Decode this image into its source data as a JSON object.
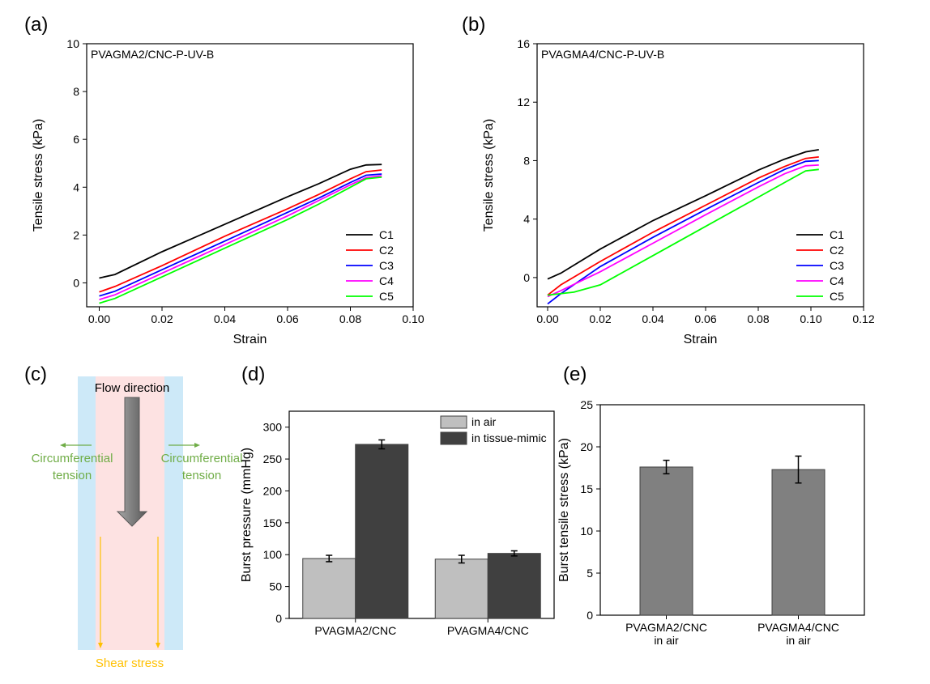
{
  "panel_labels": {
    "a": "(a)",
    "b": "(b)",
    "c": "(c)",
    "d": "(d)",
    "e": "(e)"
  },
  "diagram": {
    "flow_label": "Flow direction",
    "left_tension": [
      "Circumferential",
      "tension"
    ],
    "right_tension": [
      "Circumferential",
      "tension"
    ],
    "shear_label": "Shear stress",
    "colors": {
      "wall": "#cde9f8",
      "lumen": "#fde2e2",
      "tension": "#70ad47",
      "shear": "#ffc000",
      "arrow": "#808080"
    }
  },
  "chart_data": [
    {
      "type": "line",
      "annotation": "PVAGMA2/CNC-P-UV-B",
      "xlabel": "Strain",
      "ylabel": "Tensile stress (kPa)",
      "xlim": [
        -0.004,
        0.1
      ],
      "ylim": [
        -1,
        10
      ],
      "xticks": [
        "0.00",
        "0.02",
        "0.04",
        "0.06",
        "0.08",
        "0.10"
      ],
      "yticks": [
        "0",
        "2",
        "4",
        "6",
        "8",
        "10"
      ],
      "legend_position": "bottom-right",
      "series": [
        {
          "name": "C1",
          "color": "#000000",
          "points": [
            [
              0,
              0.2
            ],
            [
              0.005,
              0.35
            ],
            [
              0.02,
              1.3
            ],
            [
              0.04,
              2.45
            ],
            [
              0.06,
              3.6
            ],
            [
              0.07,
              4.15
            ],
            [
              0.08,
              4.75
            ],
            [
              0.085,
              4.93
            ],
            [
              0.09,
              4.95
            ]
          ]
        },
        {
          "name": "C2",
          "color": "#ff0000",
          "points": [
            [
              0,
              -0.38
            ],
            [
              0.005,
              -0.15
            ],
            [
              0.02,
              0.72
            ],
            [
              0.04,
              1.95
            ],
            [
              0.06,
              3.1
            ],
            [
              0.07,
              3.7
            ],
            [
              0.08,
              4.35
            ],
            [
              0.085,
              4.65
            ],
            [
              0.09,
              4.72
            ]
          ]
        },
        {
          "name": "C3",
          "color": "#0000ff",
          "points": [
            [
              0,
              -0.55
            ],
            [
              0.005,
              -0.35
            ],
            [
              0.02,
              0.55
            ],
            [
              0.04,
              1.75
            ],
            [
              0.06,
              2.95
            ],
            [
              0.07,
              3.55
            ],
            [
              0.08,
              4.2
            ],
            [
              0.085,
              4.5
            ],
            [
              0.09,
              4.55
            ]
          ]
        },
        {
          "name": "C4",
          "color": "#ff00ff",
          "points": [
            [
              0,
              -0.7
            ],
            [
              0.005,
              -0.5
            ],
            [
              0.02,
              0.4
            ],
            [
              0.04,
              1.6
            ],
            [
              0.06,
              2.8
            ],
            [
              0.07,
              3.45
            ],
            [
              0.08,
              4.1
            ],
            [
              0.085,
              4.4
            ],
            [
              0.09,
              4.48
            ]
          ]
        },
        {
          "name": "C5",
          "color": "#00ff00",
          "points": [
            [
              0,
              -0.85
            ],
            [
              0.005,
              -0.65
            ],
            [
              0.02,
              0.25
            ],
            [
              0.04,
              1.45
            ],
            [
              0.06,
              2.65
            ],
            [
              0.07,
              3.3
            ],
            [
              0.08,
              4.0
            ],
            [
              0.085,
              4.35
            ],
            [
              0.09,
              4.42
            ]
          ]
        }
      ]
    },
    {
      "type": "line",
      "annotation": "PVAGMA4/CNC-P-UV-B",
      "xlabel": "Strain",
      "ylabel": "Tensile stress (kPa)",
      "xlim": [
        -0.004,
        0.12
      ],
      "ylim": [
        -2,
        16
      ],
      "xticks": [
        "0.00",
        "0.02",
        "0.04",
        "0.06",
        "0.08",
        "0.10",
        "0.12"
      ],
      "yticks": [
        "0",
        "4",
        "8",
        "12",
        "16"
      ],
      "legend_position": "bottom-right",
      "series": [
        {
          "name": "C1",
          "color": "#000000",
          "points": [
            [
              0,
              -0.1
            ],
            [
              0.005,
              0.3
            ],
            [
              0.02,
              1.95
            ],
            [
              0.04,
              3.9
            ],
            [
              0.06,
              5.6
            ],
            [
              0.08,
              7.35
            ],
            [
              0.09,
              8.1
            ],
            [
              0.098,
              8.6
            ],
            [
              0.103,
              8.75
            ]
          ]
        },
        {
          "name": "C2",
          "color": "#ff0000",
          "points": [
            [
              0,
              -1.2
            ],
            [
              0.005,
              -0.5
            ],
            [
              0.02,
              1.1
            ],
            [
              0.04,
              3.1
            ],
            [
              0.06,
              4.95
            ],
            [
              0.08,
              6.8
            ],
            [
              0.09,
              7.6
            ],
            [
              0.098,
              8.15
            ],
            [
              0.103,
              8.25
            ]
          ]
        },
        {
          "name": "C3",
          "color": "#0000ff",
          "points": [
            [
              0,
              -1.8
            ],
            [
              0.005,
              -1.1
            ],
            [
              0.02,
              0.75
            ],
            [
              0.04,
              2.75
            ],
            [
              0.06,
              4.65
            ],
            [
              0.08,
              6.5
            ],
            [
              0.09,
              7.4
            ],
            [
              0.098,
              7.95
            ],
            [
              0.103,
              8.0
            ]
          ]
        },
        {
          "name": "C4",
          "color": "#ff00ff",
          "points": [
            [
              0,
              -1.3
            ],
            [
              0.005,
              -0.9
            ],
            [
              0.02,
              0.4
            ],
            [
              0.04,
              2.35
            ],
            [
              0.06,
              4.3
            ],
            [
              0.08,
              6.2
            ],
            [
              0.09,
              7.1
            ],
            [
              0.098,
              7.65
            ],
            [
              0.103,
              7.7
            ]
          ]
        },
        {
          "name": "C5",
          "color": "#00ff00",
          "points": [
            [
              0,
              -1.2
            ],
            [
              0.01,
              -1.0
            ],
            [
              0.02,
              -0.5
            ],
            [
              0.04,
              1.5
            ],
            [
              0.06,
              3.5
            ],
            [
              0.08,
              5.5
            ],
            [
              0.09,
              6.5
            ],
            [
              0.098,
              7.3
            ],
            [
              0.103,
              7.4
            ]
          ]
        }
      ]
    },
    {
      "type": "bar",
      "xlabel": "",
      "ylabel": "Burst pressure (mmHg)",
      "ylim": [
        0,
        325
      ],
      "yticks": [
        "0",
        "50",
        "100",
        "150",
        "200",
        "250",
        "300"
      ],
      "categories": [
        "PVAGMA2/CNC",
        "PVAGMA4/CNC"
      ],
      "legend_position": "top-right",
      "series": [
        {
          "name": "in air",
          "color": "#bfbfbf",
          "values": [
            94,
            93
          ],
          "errors": [
            5,
            6
          ]
        },
        {
          "name": "in tissue-mimic",
          "color": "#404040",
          "values": [
            273,
            102
          ],
          "errors": [
            7,
            4
          ]
        }
      ]
    },
    {
      "type": "bar",
      "xlabel": "",
      "ylabel": "Burst tensile stress (kPa)",
      "ylim": [
        0,
        25
      ],
      "yticks": [
        "0",
        "5",
        "10",
        "15",
        "20",
        "25"
      ],
      "categories": [
        [
          "PVAGMA2/CNC",
          "in air"
        ],
        [
          "PVAGMA4/CNC",
          "in air"
        ]
      ],
      "series": [
        {
          "color": "#808080",
          "values": [
            17.6,
            17.3
          ],
          "errors": [
            0.8,
            1.6
          ]
        }
      ]
    }
  ]
}
